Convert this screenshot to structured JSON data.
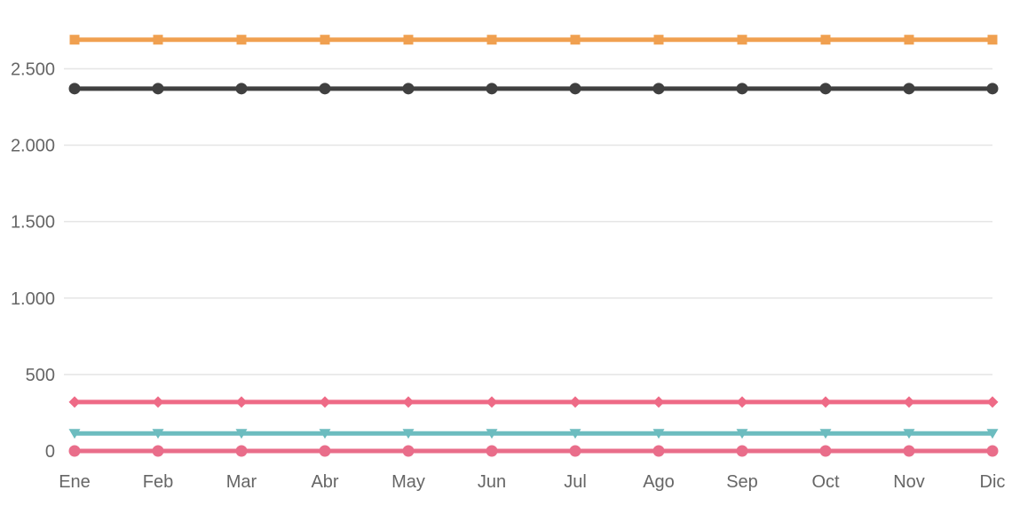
{
  "chart_data": {
    "type": "line",
    "title": "",
    "xlabel": "",
    "ylabel": "",
    "categories": [
      "Ene",
      "Feb",
      "Mar",
      "Abr",
      "May",
      "Jun",
      "Jul",
      "Ago",
      "Sep",
      "Oct",
      "Nov",
      "Dic"
    ],
    "ylim": [
      0,
      2700
    ],
    "y_ticks": [
      0,
      500,
      1000,
      1500,
      2000,
      2500
    ],
    "y_tick_labels": [
      "0",
      "500",
      "1.000",
      "1.500",
      "2.000",
      "2.500"
    ],
    "grid": true,
    "legend": "none",
    "series": [
      {
        "values": [
          2690,
          2690,
          2690,
          2690,
          2690,
          2690,
          2690,
          2690,
          2690,
          2690,
          2690,
          2690
        ],
        "color": "#f0a050",
        "marker": "square"
      },
      {
        "values": [
          2370,
          2370,
          2370,
          2370,
          2370,
          2370,
          2370,
          2370,
          2370,
          2370,
          2370,
          2370
        ],
        "color": "#404040",
        "marker": "circle"
      },
      {
        "values": [
          320,
          320,
          320,
          320,
          320,
          320,
          320,
          320,
          320,
          320,
          320,
          320
        ],
        "color": "#ee6a86",
        "marker": "diamond"
      },
      {
        "values": [
          115,
          115,
          115,
          115,
          115,
          115,
          115,
          115,
          115,
          115,
          115,
          115
        ],
        "color": "#6cbcbf",
        "marker": "triangle-down"
      },
      {
        "values": [
          0,
          0,
          0,
          0,
          0,
          0,
          0,
          0,
          0,
          0,
          0,
          0
        ],
        "color": "#e96d8a",
        "marker": "circle"
      }
    ]
  }
}
